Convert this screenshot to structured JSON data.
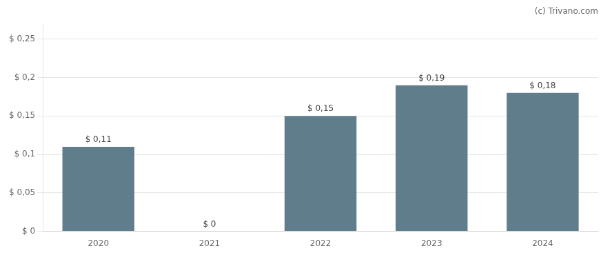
{
  "chart_data": {
    "type": "bar",
    "annotation": "(c) Trivano.com",
    "categories": [
      "2020",
      "2021",
      "2022",
      "2023",
      "2024"
    ],
    "values": [
      0.11,
      0.0,
      0.15,
      0.19,
      0.18
    ],
    "value_labels": [
      "$ 0,11",
      "$ 0",
      "$ 0,15",
      "$ 0,19",
      "$ 0,18"
    ],
    "data_labels": true,
    "color": "#607d8b",
    "ylim": [
      0,
      0.27
    ],
    "yticks": [
      {
        "value": 0.0,
        "label": "$ 0"
      },
      {
        "value": 0.05,
        "label": "$ 0,05"
      },
      {
        "value": 0.1,
        "label": "$ 0,1"
      },
      {
        "value": 0.15,
        "label": "$ 0,15"
      },
      {
        "value": 0.2,
        "label": "$ 0,2"
      },
      {
        "value": 0.25,
        "label": "$ 0,25"
      }
    ],
    "grid": true
  }
}
